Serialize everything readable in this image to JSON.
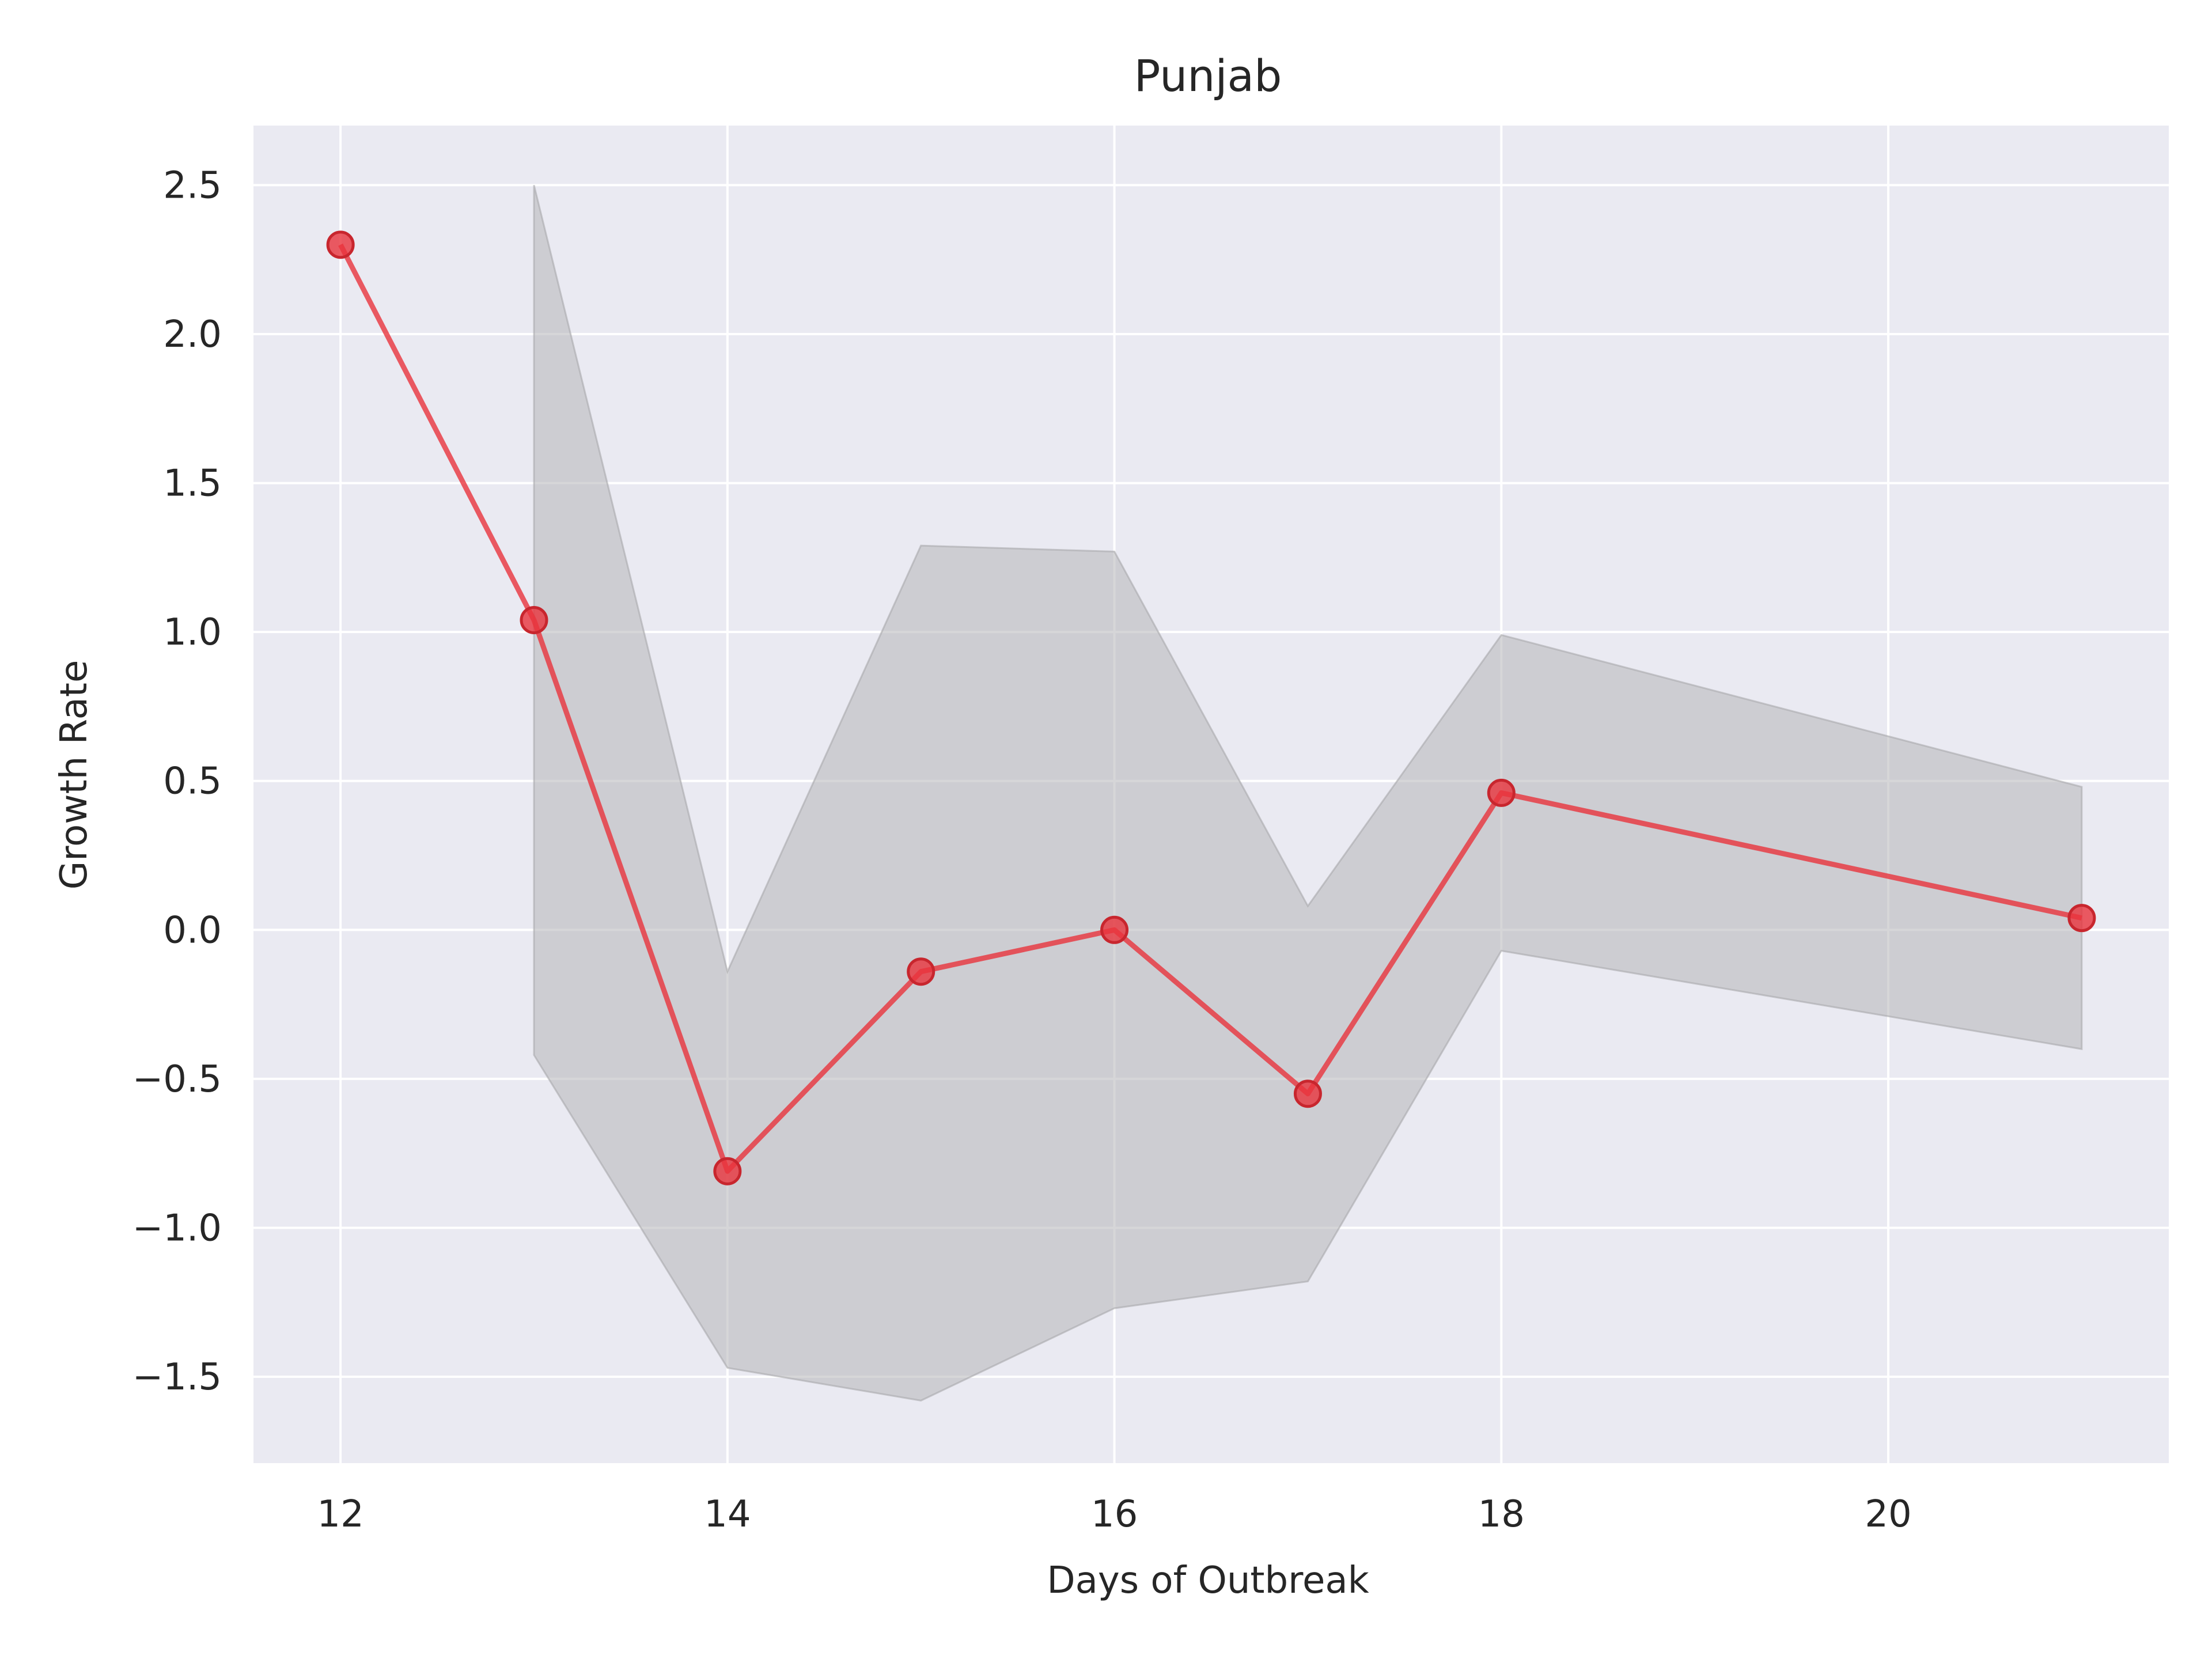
{
  "chart_data": {
    "type": "line",
    "title": "Punjab",
    "xlabel": "Days of Outbreak",
    "ylabel": "Growth Rate",
    "xlim": [
      11.55,
      21.45
    ],
    "ylim": [
      -1.79,
      2.7
    ],
    "x_ticks": [
      12,
      14,
      16,
      18,
      20
    ],
    "y_ticks": [
      2.5,
      2.0,
      1.5,
      1.0,
      0.5,
      0.0,
      -0.5,
      -1.0,
      -1.5
    ],
    "x_tick_labels": [
      "12",
      "14",
      "16",
      "18",
      "20"
    ],
    "y_tick_labels": [
      "2.5",
      "2.0",
      "1.5",
      "1.0",
      "0.5",
      "0.0",
      "−0.5",
      "−1.0",
      "−1.5"
    ],
    "grid": true,
    "series": [
      {
        "x": [
          12,
          13,
          14,
          15,
          16,
          17,
          18,
          21
        ],
        "values": [
          2.3,
          1.04,
          -0.81,
          -0.14,
          0.0,
          -0.55,
          0.46,
          0.04
        ],
        "color": "#e8333c"
      }
    ],
    "band": {
      "x": [
        13,
        14,
        15,
        16,
        17,
        18,
        21
      ],
      "upper": [
        2.5,
        -0.14,
        1.29,
        1.27,
        0.08,
        0.99,
        0.48
      ],
      "lower": [
        -0.42,
        -1.47,
        -1.58,
        -1.27,
        -1.18,
        -0.07,
        -0.4
      ],
      "color": "#b4b4b8"
    },
    "background": "#eaeaf2",
    "gridColor": "#ffffff"
  }
}
